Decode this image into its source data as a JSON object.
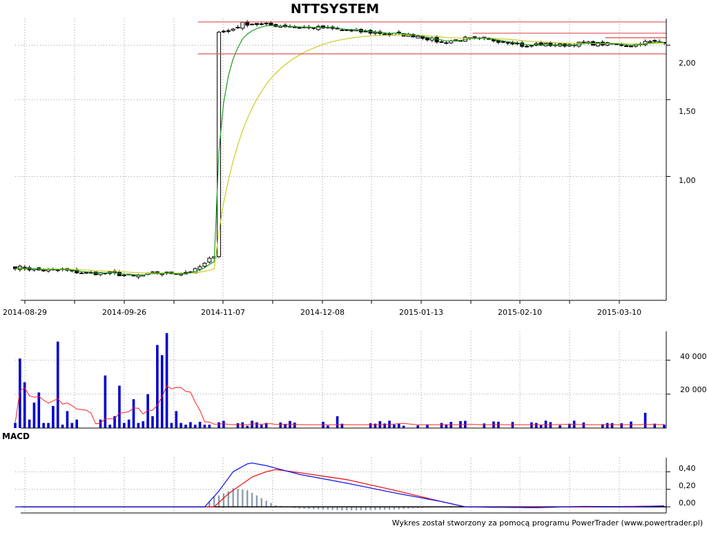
{
  "chart_data": [
    {
      "type": "candlestick",
      "title": "NTTSYSTEM",
      "x_dates": [
        "2014-08-29",
        "2014-09-26",
        "2014-11-07",
        "2014-12-08",
        "2015-01-13",
        "2015-02-10",
        "2015-03-10"
      ],
      "y_ticks": [
        "2,00",
        "1,50",
        "1,00"
      ],
      "y_tick_values": [
        2.0,
        1.5,
        1.0
      ],
      "ylim": [
        0.52,
        2.3
      ],
      "scale": "log",
      "bar_count": 138,
      "grid": true,
      "colors": {
        "up": "#ffffff",
        "down": "#000000",
        "ma_fast": "#1a9a1a",
        "ma_slow": "#cccc22",
        "resistance": "#e05050"
      },
      "close_anchors": [
        [
          0,
          0.62
        ],
        [
          5,
          0.61
        ],
        [
          10,
          0.61
        ],
        [
          15,
          0.6
        ],
        [
          20,
          0.6
        ],
        [
          25,
          0.59
        ],
        [
          30,
          0.6
        ],
        [
          35,
          0.6
        ],
        [
          38,
          0.61
        ],
        [
          40,
          0.63
        ],
        [
          42,
          0.66
        ],
        [
          43,
          2.15
        ],
        [
          45,
          2.15
        ],
        [
          48,
          2.24
        ],
        [
          50,
          2.24
        ],
        [
          55,
          2.22
        ],
        [
          60,
          2.2
        ],
        [
          65,
          2.19
        ],
        [
          70,
          2.16
        ],
        [
          75,
          2.14
        ],
        [
          80,
          2.12
        ],
        [
          85,
          2.1
        ],
        [
          90,
          2.03
        ],
        [
          95,
          2.07
        ],
        [
          100,
          2.06
        ],
        [
          105,
          2.03
        ],
        [
          108,
          1.98
        ],
        [
          110,
          2.01
        ],
        [
          115,
          2.0
        ],
        [
          120,
          2.02
        ],
        [
          125,
          2.01
        ],
        [
          130,
          2.0
        ],
        [
          133,
          2.03
        ],
        [
          137,
          2.04
        ]
      ],
      "resistance_levels": [
        {
          "y": 2.26,
          "from": 40,
          "to": 137
        },
        {
          "y": 2.13,
          "from": 98,
          "to": 137
        },
        {
          "y": 2.08,
          "from": 126,
          "to": 137
        },
        {
          "y": 1.91,
          "from": 40,
          "to": 137
        }
      ]
    },
    {
      "type": "bar",
      "y_ticks": [
        "40 000",
        "20 000"
      ],
      "y_tick_values": [
        40000,
        20000
      ],
      "ylim": [
        0,
        57000
      ],
      "colors": {
        "bars": "#0000cc",
        "avg": "#ff2020"
      },
      "volume_anchors": [
        [
          0,
          3000
        ],
        [
          1,
          41000
        ],
        [
          2,
          27000
        ],
        [
          3,
          5000
        ],
        [
          4,
          15000
        ],
        [
          5,
          21000
        ],
        [
          6,
          3000
        ],
        [
          7,
          3000
        ],
        [
          8,
          13000
        ],
        [
          9,
          51000
        ],
        [
          10,
          2000
        ],
        [
          11,
          10000
        ],
        [
          12,
          3000
        ],
        [
          13,
          5000
        ],
        [
          18,
          5000
        ],
        [
          19,
          31000
        ],
        [
          20,
          2000
        ],
        [
          21,
          7000
        ],
        [
          22,
          25000
        ],
        [
          23,
          3000
        ],
        [
          24,
          5000
        ],
        [
          25,
          17000
        ],
        [
          26,
          3000
        ],
        [
          27,
          4000
        ],
        [
          28,
          20000
        ],
        [
          29,
          7000
        ],
        [
          30,
          49000
        ],
        [
          31,
          43000
        ],
        [
          32,
          56000
        ],
        [
          33,
          3000
        ],
        [
          34,
          10000
        ],
        [
          35,
          3000
        ],
        [
          36,
          2000
        ],
        [
          40,
          2000
        ],
        [
          41,
          2000
        ],
        [
          68,
          7000
        ],
        [
          80,
          2000
        ],
        [
          90,
          3000
        ],
        [
          110,
          3000
        ],
        [
          125,
          3000
        ],
        [
          133,
          9000
        ],
        [
          137,
          2000
        ]
      ]
    },
    {
      "type": "line",
      "title": "MACD",
      "y_ticks": [
        "0,40",
        "0,20",
        "0,00"
      ],
      "y_tick_values": [
        0.4,
        0.2,
        0.0
      ],
      "ylim": [
        -0.07,
        0.56
      ],
      "colors": {
        "macd": "#1a1ae6",
        "signal": "#e61a1a",
        "histogram": "#8c9cb0",
        "zero": "#000000"
      },
      "macd_anchors": [
        [
          0,
          0.0
        ],
        [
          40,
          0.0
        ],
        [
          43,
          0.18
        ],
        [
          46,
          0.4
        ],
        [
          49,
          0.49
        ],
        [
          50,
          0.5
        ],
        [
          53,
          0.47
        ],
        [
          60,
          0.37
        ],
        [
          70,
          0.27
        ],
        [
          80,
          0.16
        ],
        [
          90,
          0.06
        ],
        [
          95,
          0.0
        ],
        [
          100,
          -0.005
        ],
        [
          110,
          -0.01
        ],
        [
          120,
          0.005
        ],
        [
          130,
          0.0
        ],
        [
          137,
          0.01
        ]
      ],
      "signal_anchors": [
        [
          0,
          0.0
        ],
        [
          42,
          0.0
        ],
        [
          45,
          0.15
        ],
        [
          50,
          0.34
        ],
        [
          53,
          0.4
        ],
        [
          55,
          0.425
        ],
        [
          60,
          0.39
        ],
        [
          70,
          0.31
        ],
        [
          80,
          0.19
        ],
        [
          90,
          0.06
        ],
        [
          95,
          0.0
        ],
        [
          100,
          -0.003
        ],
        [
          110,
          -0.005
        ],
        [
          120,
          0.0
        ],
        [
          130,
          0.005
        ],
        [
          137,
          0.01
        ]
      ]
    }
  ],
  "footer": {
    "credit": "Wykres został stworzony za pomocą programu PowerTrader (www.powertrader.pl)"
  }
}
